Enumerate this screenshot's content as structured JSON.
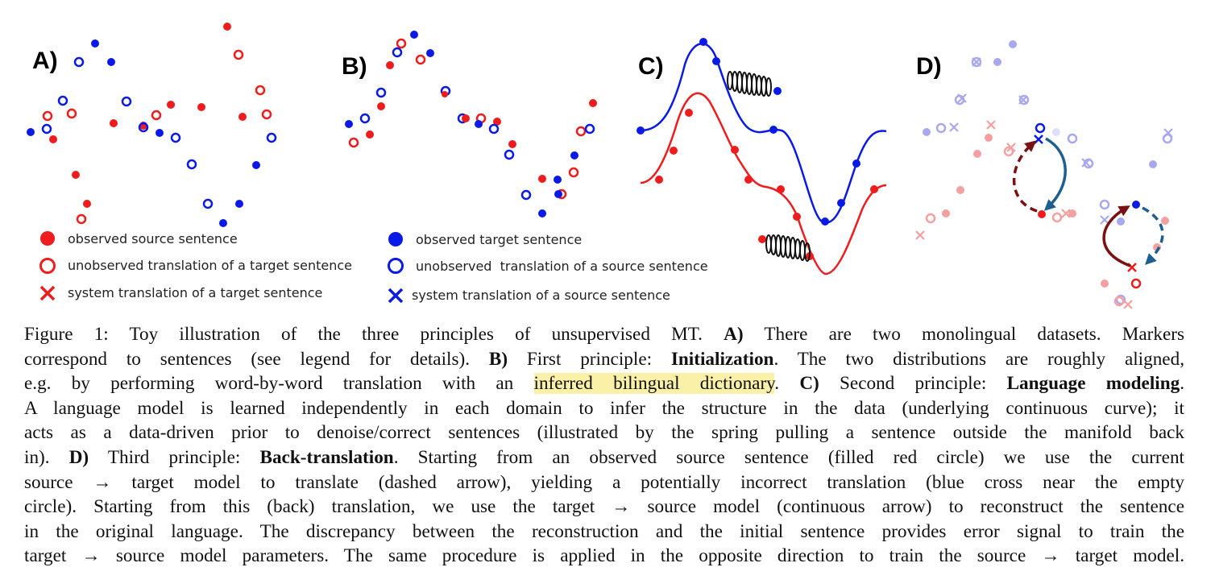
{
  "figure": {
    "panels": [
      {
        "label": "A)"
      },
      {
        "label": "B)"
      },
      {
        "label": "C)"
      },
      {
        "label": "D)"
      }
    ],
    "legend_left": [
      {
        "marker": "filled-red-circle",
        "text": "observed source sentence"
      },
      {
        "marker": "open-red-circle",
        "text": "unobserved translation of a target sentence"
      },
      {
        "marker": "red-cross",
        "text": "system translation of a target sentence"
      }
    ],
    "legend_right": [
      {
        "marker": "filled-blue-circle",
        "text": "observed target sentence"
      },
      {
        "marker": "open-blue-circle",
        "text": "unobserved  translation of a source sentence"
      },
      {
        "marker": "blue-cross",
        "text": "system translation of a source sentence"
      }
    ],
    "colors": {
      "red": "#ee1c1c",
      "blue": "#0a1ae6",
      "dark_red": "#7a1010",
      "dark_blue": "#1f5f8f",
      "light_red": "#f4a0a0",
      "light_blue": "#a8a8ee"
    }
  },
  "caption": {
    "l1_a": "Figure 1:  Toy illustration of the three principles of unsupervised MT. ",
    "l1_b": "A)",
    "l1_c": " There are two monolingual datasets.  Markers",
    "l2_a": "correspond to sentences (see legend for details). ",
    "l2_b": "B)",
    "l2_c": " First principle: ",
    "l2_d": "Initialization",
    "l2_e": ". The two distributions are roughly aligned,",
    "l3_a": "e.g. by performing word-by-word translation with an ",
    "l3_hl": "inferred bilingual dictionary",
    "l3_b": ". ",
    "l3_c": "C)",
    "l3_d": " Second principle: ",
    "l3_e": "Language modeling",
    "l3_f": ".",
    "l4": "A language model is learned independently in each domain to infer the structure in the data (underlying continuous curve); it",
    "l5": "acts as a data-driven prior to denoise/correct sentences (illustrated by the spring pulling a sentence outside the manifold back",
    "l6_a": "in).  ",
    "l6_b": "D)",
    "l6_c": " Third principle: ",
    "l6_d": "Back-translation",
    "l6_e": ".  Starting from an observed source sentence (filled red circle) we use the current",
    "l7": "source → target model to translate (dashed arrow), yielding a potentially incorrect translation (blue cross near the empty",
    "l8": "circle). Starting from this (back) translation, we use the target → source model (continuous arrow) to reconstruct the sentence",
    "l9": "in the original language. The discrepancy between the reconstruction and the initial sentence provides error signal to train the",
    "l10": "target → source model parameters. The same procedure is applied in the opposite direction to train the source → target model."
  }
}
